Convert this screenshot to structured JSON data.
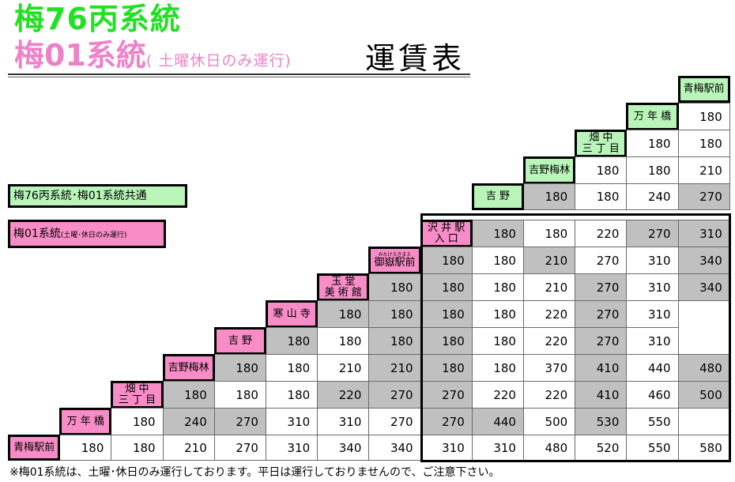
{
  "header": {
    "route_main": "梅76丙系統",
    "route_weekend": "梅01系統",
    "route_weekend_note": "( 土曜休日のみ運行)",
    "title": "運賃表"
  },
  "legend": {
    "common": "梅76丙系統･梅01系統共通",
    "weekend_label": "梅01系統",
    "weekend_note": "(土曜･休日のみ運行)"
  },
  "stops": [
    {
      "name": "青梅駅前",
      "route": "common"
    },
    {
      "name": "万 年 橋",
      "route": "common"
    },
    {
      "name": "畑  中\n三 丁 目",
      "route": "common"
    },
    {
      "name": "吉野梅林",
      "route": "common"
    },
    {
      "name": "吉  野",
      "route": "common"
    },
    {
      "name": "沢 井 駅\n入  口",
      "route": "weekend"
    },
    {
      "name": "御嶽駅前",
      "ruby": "みたけえきまえ",
      "route": "weekend"
    },
    {
      "name": "玉  堂\n美 術 館",
      "route": "weekend"
    },
    {
      "name": "寒 山 寺",
      "route": "weekend"
    },
    {
      "name": "吉  野",
      "route": "weekend"
    },
    {
      "name": "吉野梅林",
      "route": "weekend"
    },
    {
      "name": "畑  中\n三 丁 目",
      "route": "weekend"
    },
    {
      "name": "万 年 橋",
      "route": "weekend"
    },
    {
      "name": "青梅駅前",
      "route": "weekend"
    }
  ],
  "fares": [
    [
      "180"
    ],
    [
      "180",
      "180"
    ],
    [
      "180",
      "180",
      "210"
    ],
    [
      "180",
      "180",
      "240",
      "270"
    ],
    [
      "180",
      "180",
      "220",
      "270",
      "310"
    ],
    [
      "180",
      "180",
      "210",
      "270",
      "310",
      "340"
    ],
    [
      "180",
      "180",
      "180",
      "210",
      "270",
      "310",
      "340"
    ],
    [
      "180",
      "180",
      "180",
      "180",
      "220",
      "270",
      "310"
    ],
    [
      "180",
      "180",
      "180",
      "180",
      "180",
      "220",
      "270",
      "310"
    ],
    [
      "180",
      "180",
      "210",
      "210",
      "180",
      "180",
      "370",
      "410",
      "440",
      "480"
    ],
    [
      "180",
      "180",
      "180",
      "220",
      "270",
      "270",
      "220",
      "220",
      "410",
      "460",
      "500",
      "520"
    ],
    [
      "180",
      "240",
      "270",
      "310",
      "310",
      "270",
      "270",
      "440",
      "500",
      "530",
      "550"
    ],
    [
      "180",
      "180",
      "210",
      "270",
      "310",
      "340",
      "340",
      "310",
      "310",
      "480",
      "520",
      "550",
      "580"
    ]
  ],
  "gray_cells": [
    [
      4,
      0
    ],
    [
      4,
      3
    ],
    [
      5,
      0
    ],
    [
      5,
      3
    ],
    [
      5,
      4
    ],
    [
      6,
      0
    ],
    [
      6,
      2
    ],
    [
      6,
      5
    ],
    [
      7,
      0
    ],
    [
      7,
      1
    ],
    [
      7,
      4
    ],
    [
      7,
      6
    ],
    [
      8,
      0
    ],
    [
      8,
      1
    ],
    [
      8,
      2
    ],
    [
      8,
      5
    ],
    [
      8,
      7
    ],
    [
      9,
      0
    ],
    [
      9,
      2
    ],
    [
      9,
      3
    ],
    [
      9,
      6
    ],
    [
      9,
      8
    ],
    [
      10,
      0
    ],
    [
      10,
      3
    ],
    [
      10,
      4
    ],
    [
      10,
      7
    ],
    [
      10,
      9
    ],
    [
      11,
      0
    ],
    [
      11,
      3
    ],
    [
      11,
      4
    ],
    [
      11,
      5
    ],
    [
      11,
      8
    ],
    [
      11,
      10
    ],
    [
      12,
      1
    ],
    [
      12,
      2
    ],
    [
      12,
      6
    ],
    [
      12,
      7
    ],
    [
      12,
      9
    ],
    [
      12,
      11
    ]
  ],
  "footnote": "※梅01系統は、土曜･休日のみ運行しております。平日は運行しておりませんので、ご注意下さい。"
}
